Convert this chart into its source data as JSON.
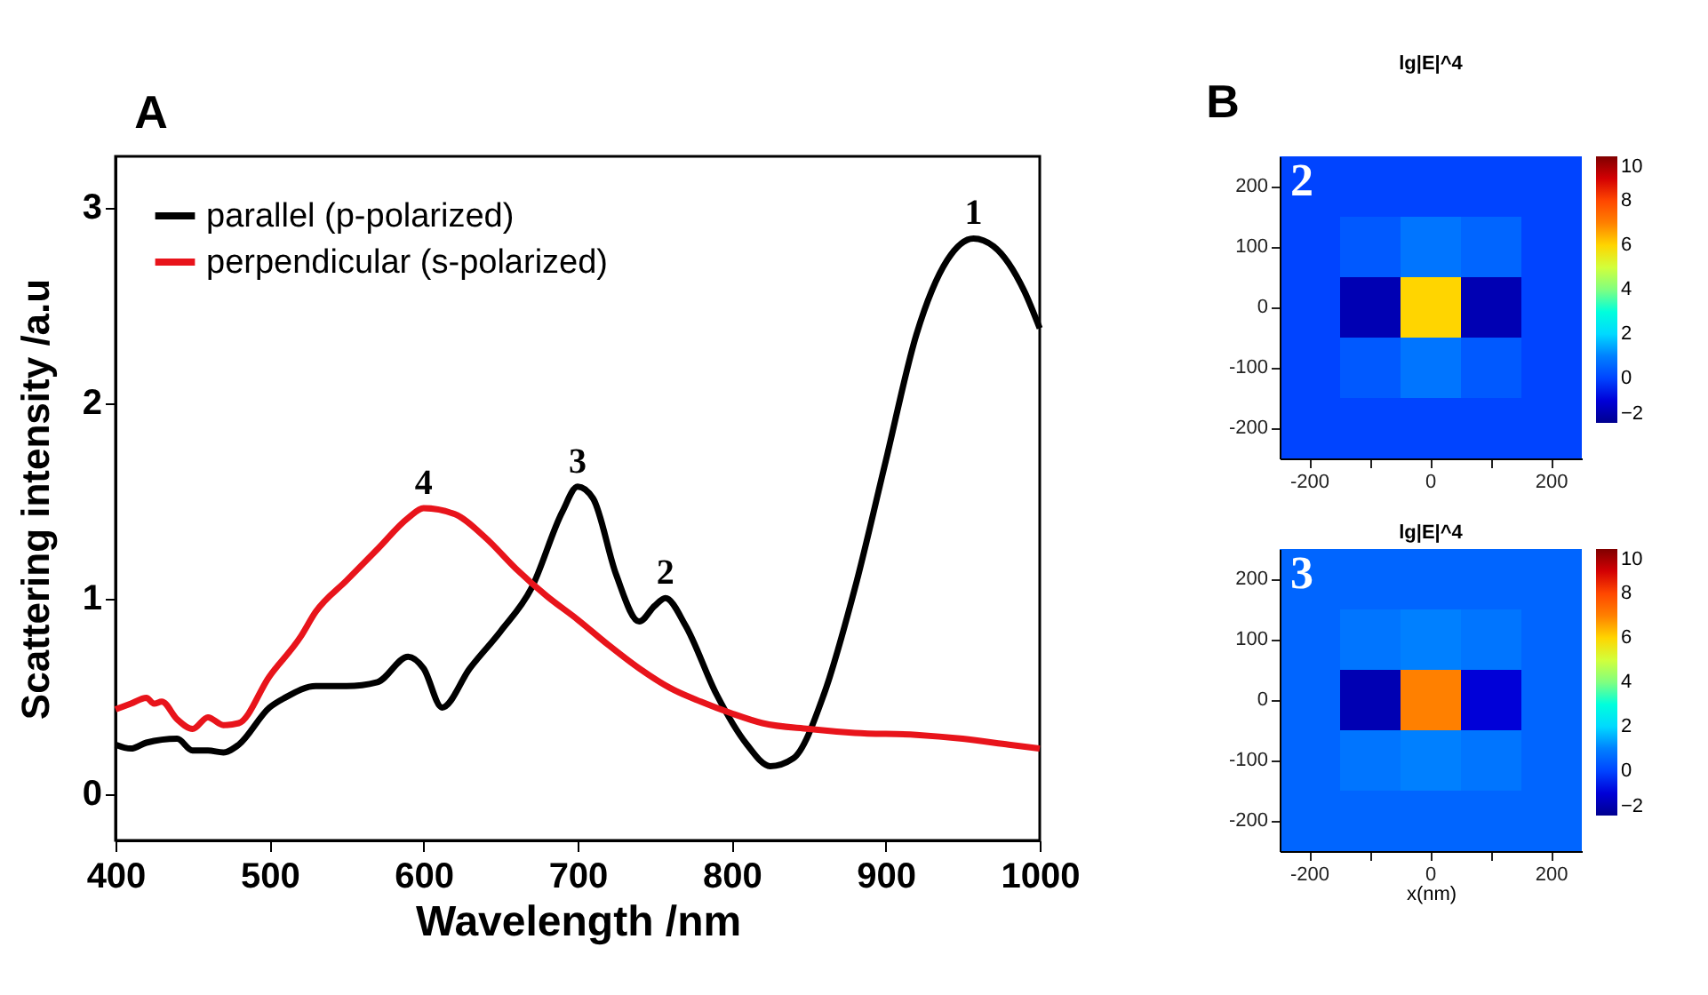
{
  "chart_data": [
    {
      "type": "line",
      "xlabel": "Wavelength /nm",
      "ylabel": "Scattering intensity /a.u",
      "xlim": [
        400,
        1000
      ],
      "ylim": [
        -0.24,
        3.26
      ],
      "xticks": [
        400,
        500,
        600,
        700,
        800,
        900,
        1000
      ],
      "yticks": [
        0,
        1,
        2,
        3
      ],
      "grid": false,
      "legend": "top left",
      "annotations": [
        "A",
        {
          "text": "1",
          "x": 957,
          "y": 2.84
        },
        {
          "text": "2",
          "x": 757,
          "y": 1.0
        },
        {
          "text": "3",
          "x": 700,
          "y": 1.57
        },
        {
          "text": "4",
          "x": 600,
          "y": 1.46
        }
      ],
      "series": [
        {
          "name": "parallel (p-polarized)",
          "color": "#000000",
          "x": [
            400,
            410,
            420,
            440,
            450,
            460,
            470,
            480,
            500,
            510,
            530,
            550,
            570,
            590,
            600,
            612,
            630,
            650,
            670,
            690,
            700,
            710,
            725,
            740,
            750,
            757,
            770,
            790,
            810,
            825,
            840,
            860,
            880,
            900,
            920,
            940,
            957,
            970,
            990,
            1000
          ],
          "values": [
            0.25,
            0.23,
            0.26,
            0.28,
            0.22,
            0.22,
            0.21,
            0.25,
            0.44,
            0.49,
            0.55,
            0.55,
            0.57,
            0.7,
            0.64,
            0.44,
            0.64,
            0.83,
            1.05,
            1.44,
            1.57,
            1.51,
            1.12,
            0.88,
            0.96,
            1.0,
            0.86,
            0.51,
            0.25,
            0.14,
            0.18,
            0.51,
            1.05,
            1.7,
            2.35,
            2.73,
            2.84,
            2.8,
            2.57,
            2.38
          ]
        },
        {
          "name": "perpendicular (s-polarized)",
          "color": "#e8141b",
          "x": [
            400,
            410,
            420,
            425,
            430,
            440,
            450,
            460,
            470,
            480,
            500,
            520,
            530,
            550,
            570,
            590,
            600,
            620,
            640,
            660,
            680,
            700,
            720,
            740,
            760,
            780,
            800,
            820,
            850,
            880,
            920,
            950,
            980,
            1000
          ],
          "values": [
            0.43,
            0.46,
            0.49,
            0.46,
            0.47,
            0.38,
            0.33,
            0.39,
            0.35,
            0.36,
            0.6,
            0.8,
            0.93,
            1.09,
            1.25,
            1.41,
            1.46,
            1.43,
            1.31,
            1.15,
            1.01,
            0.89,
            0.76,
            0.64,
            0.54,
            0.47,
            0.41,
            0.36,
            0.33,
            0.31,
            0.3,
            0.28,
            0.25,
            0.23
          ]
        }
      ]
    },
    {
      "type": "heatmap",
      "title": "lg|E|^4",
      "annotations": [
        "B",
        "2"
      ],
      "clim": [
        -2,
        10
      ],
      "cticks": [
        -2,
        0,
        2,
        4,
        6,
        8,
        10
      ],
      "categories": [
        "-200",
        null,
        "0",
        null,
        "200"
      ],
      "y_categories": [
        "200",
        "100",
        "0",
        "-100",
        "-200"
      ],
      "cells": [
        [
          0,
          0,
          0,
          0,
          0
        ],
        [
          0,
          0.3,
          0.8,
          0.5,
          0
        ],
        [
          0,
          -1.5,
          6,
          -1.5,
          0
        ],
        [
          0,
          0.3,
          0.8,
          0.3,
          0
        ],
        [
          0,
          0,
          0,
          0,
          0
        ]
      ]
    },
    {
      "type": "heatmap",
      "title": "lg|E|^4",
      "xlabel": "x(nm)",
      "annotations": [
        "3"
      ],
      "clim": [
        -2,
        10
      ],
      "cticks": [
        -2,
        0,
        2,
        4,
        6,
        8,
        10
      ],
      "categories": [
        "-200",
        null,
        "0",
        null,
        "200"
      ],
      "y_categories": [
        "200",
        "100",
        "0",
        "-100",
        "-200"
      ],
      "cells": [
        [
          0.5,
          0.5,
          0.5,
          0.5,
          0.5
        ],
        [
          0.5,
          0.8,
          1,
          0.8,
          0.5
        ],
        [
          0.5,
          -1.5,
          7,
          -1,
          0.5
        ],
        [
          0.5,
          0.8,
          1,
          0.8,
          0.5
        ],
        [
          0.5,
          0.5,
          0.5,
          0.5,
          0.5
        ]
      ]
    }
  ]
}
